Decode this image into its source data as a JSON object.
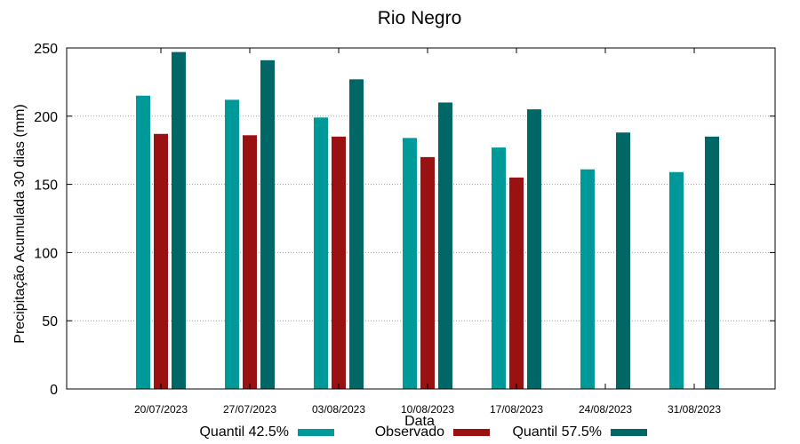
{
  "chart_data": {
    "type": "bar",
    "title": "Rio Negro",
    "xlabel": "Data",
    "ylabel": "Precipitação Acumulada 30 dias (mm)",
    "ylim": [
      0,
      250
    ],
    "yticks": [
      0,
      50,
      100,
      150,
      200,
      250
    ],
    "grid": true,
    "legend_position": "bottom",
    "categories": [
      "20/07/2023",
      "27/07/2023",
      "03/08/2023",
      "10/08/2023",
      "17/08/2023",
      "24/08/2023",
      "31/08/2023"
    ],
    "series": [
      {
        "name": "Quantil 42.5%",
        "color": "#009999",
        "values": [
          215,
          212,
          199,
          184,
          177,
          161,
          159
        ]
      },
      {
        "name": "Observado",
        "color": "#991111",
        "values": [
          187,
          186,
          185,
          170,
          155,
          null,
          null
        ]
      },
      {
        "name": "Quantil 57.5%",
        "color": "#006666",
        "values": [
          247,
          241,
          227,
          210,
          205,
          188,
          185
        ]
      }
    ]
  }
}
